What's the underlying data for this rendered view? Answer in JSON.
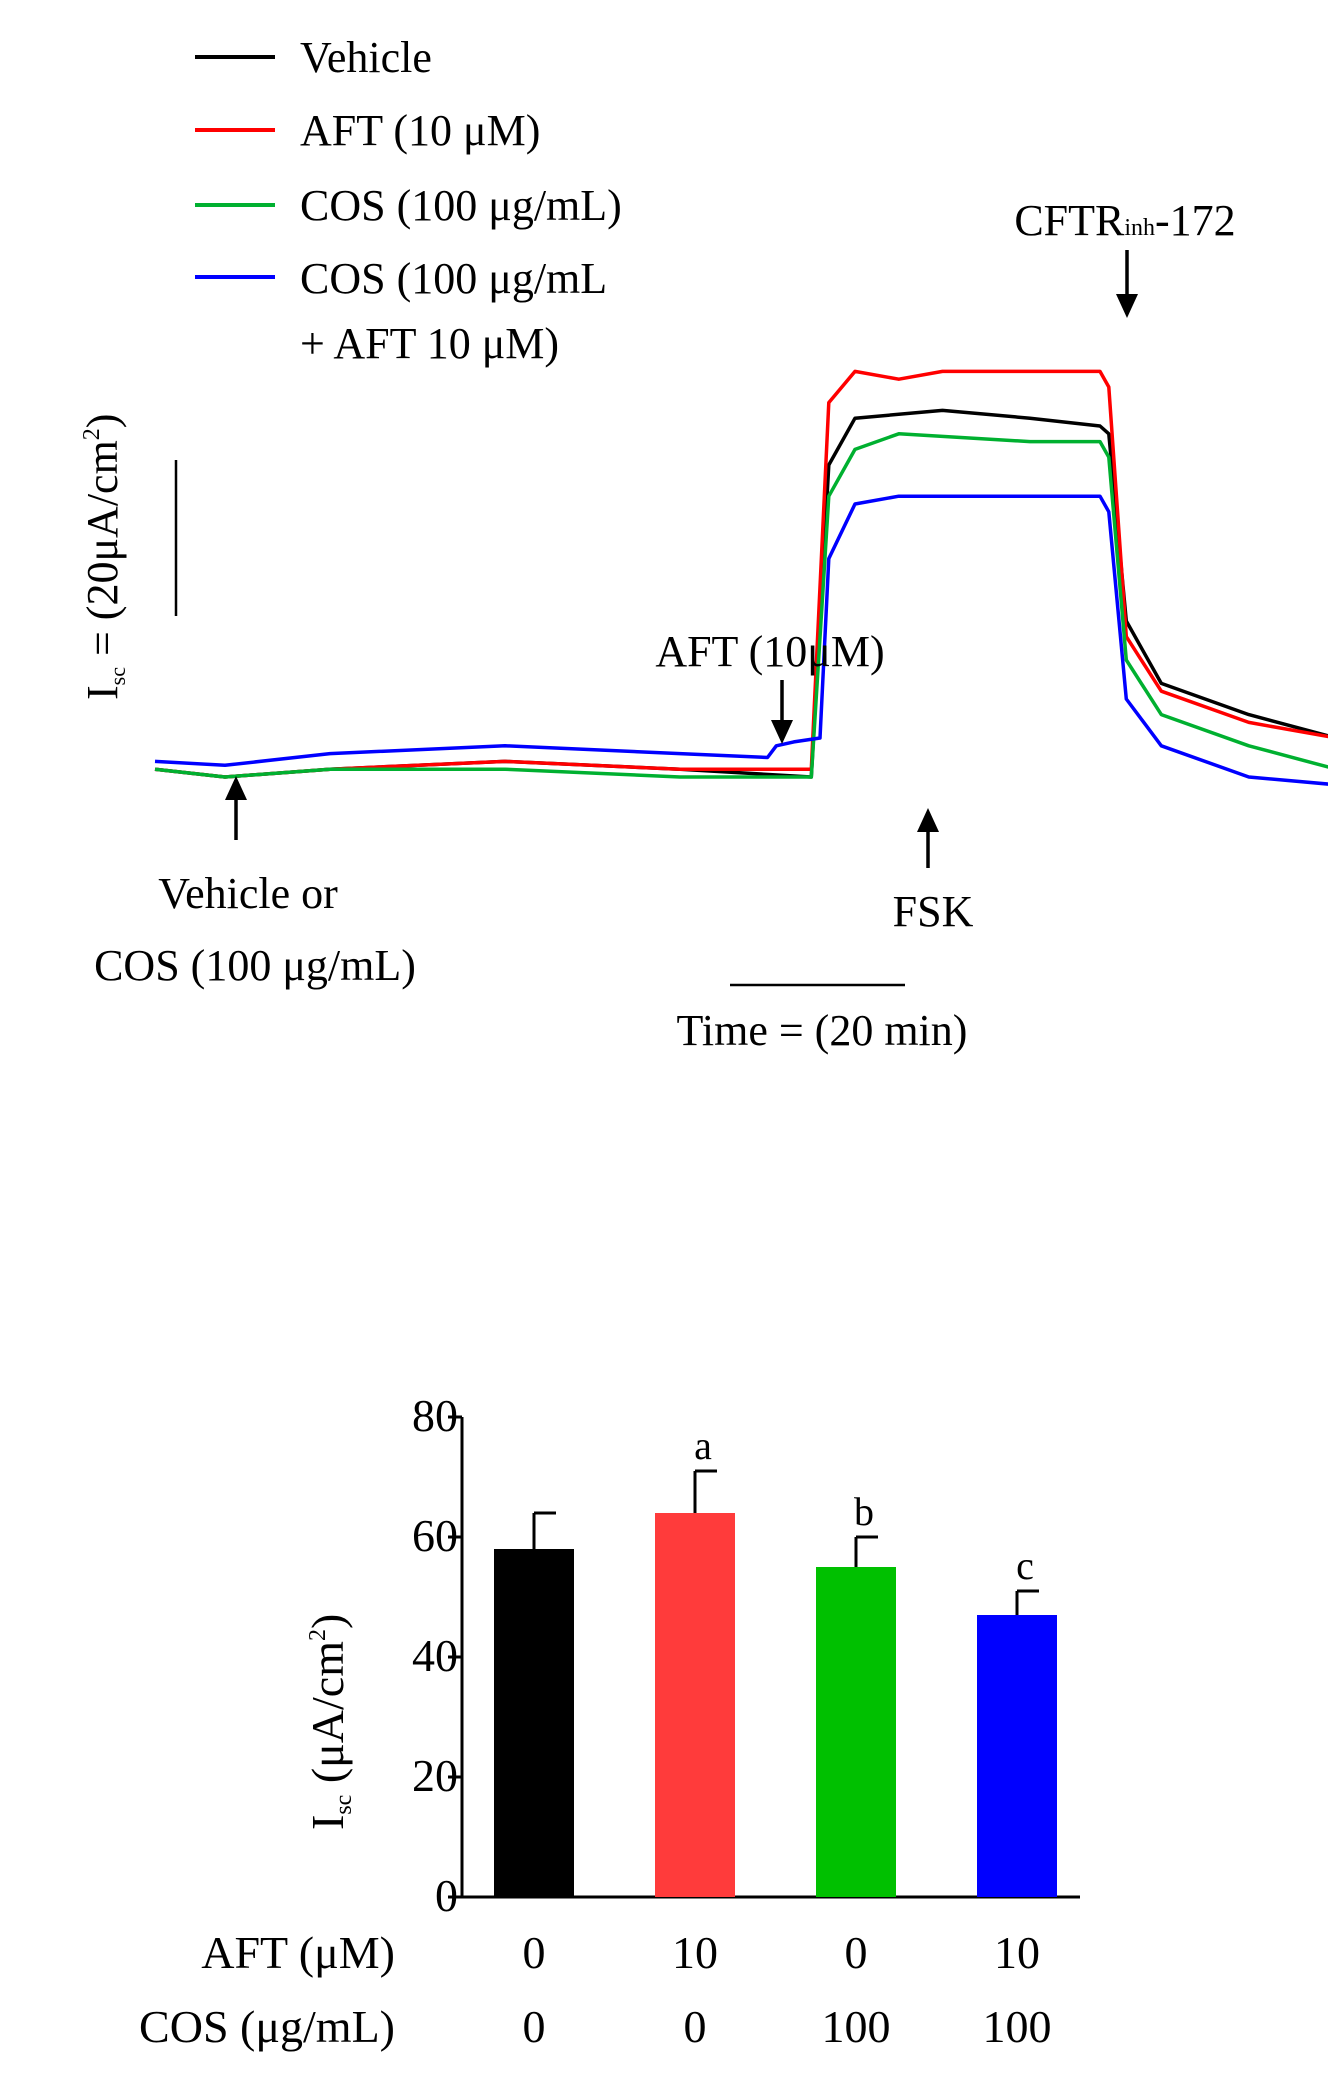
{
  "chart_data": [
    {
      "type": "line",
      "title": "",
      "legend": {
        "placement": "top-left",
        "entries": [
          {
            "label": "Vehicle",
            "color": "#000000"
          },
          {
            "label": "AFT (10 μM)",
            "color": "#ff0000"
          },
          {
            "label": "COS (100 μg/mL)",
            "color": "#00b030"
          },
          {
            "label": "COS (100 μg/mL",
            "label2": "+ AFT 10 μM)",
            "color": "#0000ff"
          }
        ]
      },
      "scale_bars": {
        "y": {
          "prefix": "I",
          "sub": "sc",
          "text": " = (20μA/cm",
          "sup": "2",
          "suffix": ")",
          "value": 20
        },
        "x": {
          "label": "Time = (20 min)",
          "value": 20
        }
      },
      "annotations": [
        {
          "id": "vehicle",
          "lines": [
            "Vehicle or",
            "COS (100 μg/mL)"
          ],
          "direction": "up"
        },
        {
          "id": "aft",
          "lines": [
            "AFT (10μM)"
          ],
          "direction": "down"
        },
        {
          "id": "fsk",
          "lines": [
            "FSK"
          ],
          "direction": "up"
        },
        {
          "id": "cftr",
          "main": "CFTR",
          "sub": "inh",
          "suffix": "-172",
          "direction": "down"
        }
      ],
      "series": [
        {
          "name": "Vehicle",
          "color": "#000000",
          "points": [
            [
              0,
              1
            ],
            [
              8,
              0
            ],
            [
              20,
              1
            ],
            [
              40,
              2
            ],
            [
              60,
              1
            ],
            [
              75,
              0
            ],
            [
              77,
              40
            ],
            [
              80,
              46
            ],
            [
              90,
              47
            ],
            [
              100,
              46
            ],
            [
              108,
              45
            ],
            [
              109,
              44
            ],
            [
              111,
              20
            ],
            [
              115,
              12
            ],
            [
              125,
              8
            ],
            [
              135,
              5
            ],
            [
              145,
              3
            ]
          ]
        },
        {
          "name": "AFT (10 μM)",
          "color": "#ff0000",
          "points": [
            [
              0,
              1
            ],
            [
              8,
              0
            ],
            [
              20,
              1
            ],
            [
              40,
              2
            ],
            [
              60,
              1
            ],
            [
              75,
              1
            ],
            [
              77,
              48
            ],
            [
              80,
              52
            ],
            [
              85,
              51
            ],
            [
              90,
              52
            ],
            [
              100,
              52
            ],
            [
              108,
              52
            ],
            [
              109,
              50
            ],
            [
              111,
              18
            ],
            [
              115,
              11
            ],
            [
              125,
              7
            ],
            [
              135,
              5
            ],
            [
              145,
              3
            ]
          ]
        },
        {
          "name": "COS (100 μg/mL)",
          "color": "#00b030",
          "points": [
            [
              0,
              1
            ],
            [
              8,
              0
            ],
            [
              20,
              1
            ],
            [
              40,
              1
            ],
            [
              60,
              0
            ],
            [
              75,
              0
            ],
            [
              77,
              36
            ],
            [
              80,
              42
            ],
            [
              85,
              44
            ],
            [
              100,
              43
            ],
            [
              108,
              43
            ],
            [
              109,
              41
            ],
            [
              111,
              15
            ],
            [
              115,
              8
            ],
            [
              125,
              4
            ],
            [
              135,
              1
            ],
            [
              145,
              0
            ]
          ]
        },
        {
          "name": "COS (100 μg/mL + AFT 10 μM)",
          "color": "#0000ff",
          "points": [
            [
              0,
              2
            ],
            [
              8,
              1.5
            ],
            [
              20,
              3
            ],
            [
              40,
              4
            ],
            [
              60,
              3
            ],
            [
              70,
              2.5
            ],
            [
              71,
              4
            ],
            [
              73,
              4.5
            ],
            [
              76,
              5
            ],
            [
              77,
              28
            ],
            [
              80,
              35
            ],
            [
              85,
              36
            ],
            [
              100,
              36
            ],
            [
              108,
              36
            ],
            [
              109,
              34
            ],
            [
              111,
              10
            ],
            [
              115,
              4
            ],
            [
              125,
              0
            ],
            [
              135,
              -1
            ],
            [
              145,
              -2
            ]
          ]
        }
      ]
    },
    {
      "type": "bar",
      "title": "",
      "ylabel": {
        "main": "I",
        "sub": "sc",
        "text": " (μA/cm",
        "sup": "2",
        "suffix": ")"
      },
      "ylim": [
        0,
        80
      ],
      "yticks": [
        "0",
        "20",
        "40",
        "60",
        "80"
      ],
      "tick_values": [
        0,
        20,
        40,
        60,
        80
      ],
      "values": [
        58,
        64,
        55,
        47
      ],
      "errors": [
        6,
        7,
        5,
        4
      ],
      "letters": [
        "",
        "a",
        "b",
        "c"
      ],
      "colors": [
        "#000000",
        "#ff3b3b",
        "#00c000",
        "#0000ff"
      ],
      "row_labels": [
        {
          "label": "AFT (μM)",
          "values": [
            "0",
            "10",
            "0",
            "10"
          ]
        },
        {
          "label": "COS (μg/mL)",
          "values": [
            "0",
            "0",
            "100",
            "100"
          ]
        }
      ]
    }
  ]
}
